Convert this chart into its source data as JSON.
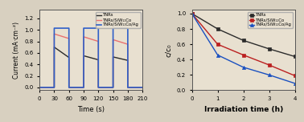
{
  "left_chart": {
    "xlabel": "Time (s)",
    "ylabel": "Current (mA·cm⁻²)",
    "xlim": [
      0,
      210
    ],
    "ylim": [
      -0.05,
      1.35
    ],
    "xticks": [
      0,
      30,
      60,
      90,
      120,
      150,
      180,
      210
    ],
    "yticks": [
      0.0,
      0.2,
      0.4,
      0.6,
      0.8,
      1.0,
      1.2
    ],
    "legend": [
      "TNRs",
      "TNRs/SiW₁₁Co",
      "TNRs/SiW₁₁Co/Ag"
    ],
    "colors": [
      "#2b2b2b",
      "#e87070",
      "#3060c8"
    ],
    "pulses": [
      {
        "on": 30,
        "off": 60
      },
      {
        "on": 90,
        "off": 120
      },
      {
        "on": 150,
        "off": 180
      }
    ],
    "tnr_on_values": [
      0.7,
      0.55,
      0.53
    ],
    "tnr_off_values": [
      0.52,
      0.48,
      0.47
    ],
    "red_on_values": [
      0.93,
      0.88,
      0.83
    ],
    "red_off_values": [
      0.85,
      0.8,
      0.75
    ],
    "blue_on_value": 1.03,
    "blue_off_value": 0.0
  },
  "right_chart": {
    "xlabel": "Irradiation time (h)",
    "ylabel": "c/c₀",
    "xlim": [
      0,
      4
    ],
    "ylim": [
      0,
      1.05
    ],
    "xticks": [
      0,
      1,
      2,
      3,
      4
    ],
    "yticks": [
      0.0,
      0.2,
      0.4,
      0.6,
      0.8,
      1.0
    ],
    "legend": [
      "TNRs",
      "TNRs/SiW₁₁Co",
      "TNRs/SiW₁₁Co/Ag"
    ],
    "colors": [
      "#2b2b2b",
      "#bb2020",
      "#1a50c0"
    ],
    "markers": [
      "s",
      "s",
      "^"
    ],
    "time": [
      0,
      1,
      2,
      3,
      4
    ],
    "tnr_values": [
      1.0,
      0.8,
      0.65,
      0.54,
      0.44
    ],
    "red_values": [
      1.0,
      0.6,
      0.46,
      0.33,
      0.19
    ],
    "blue_values": [
      1.0,
      0.46,
      0.3,
      0.2,
      0.09
    ]
  },
  "fig_bg": "#d8d0c0",
  "ax_bg": "#e8e0d0"
}
